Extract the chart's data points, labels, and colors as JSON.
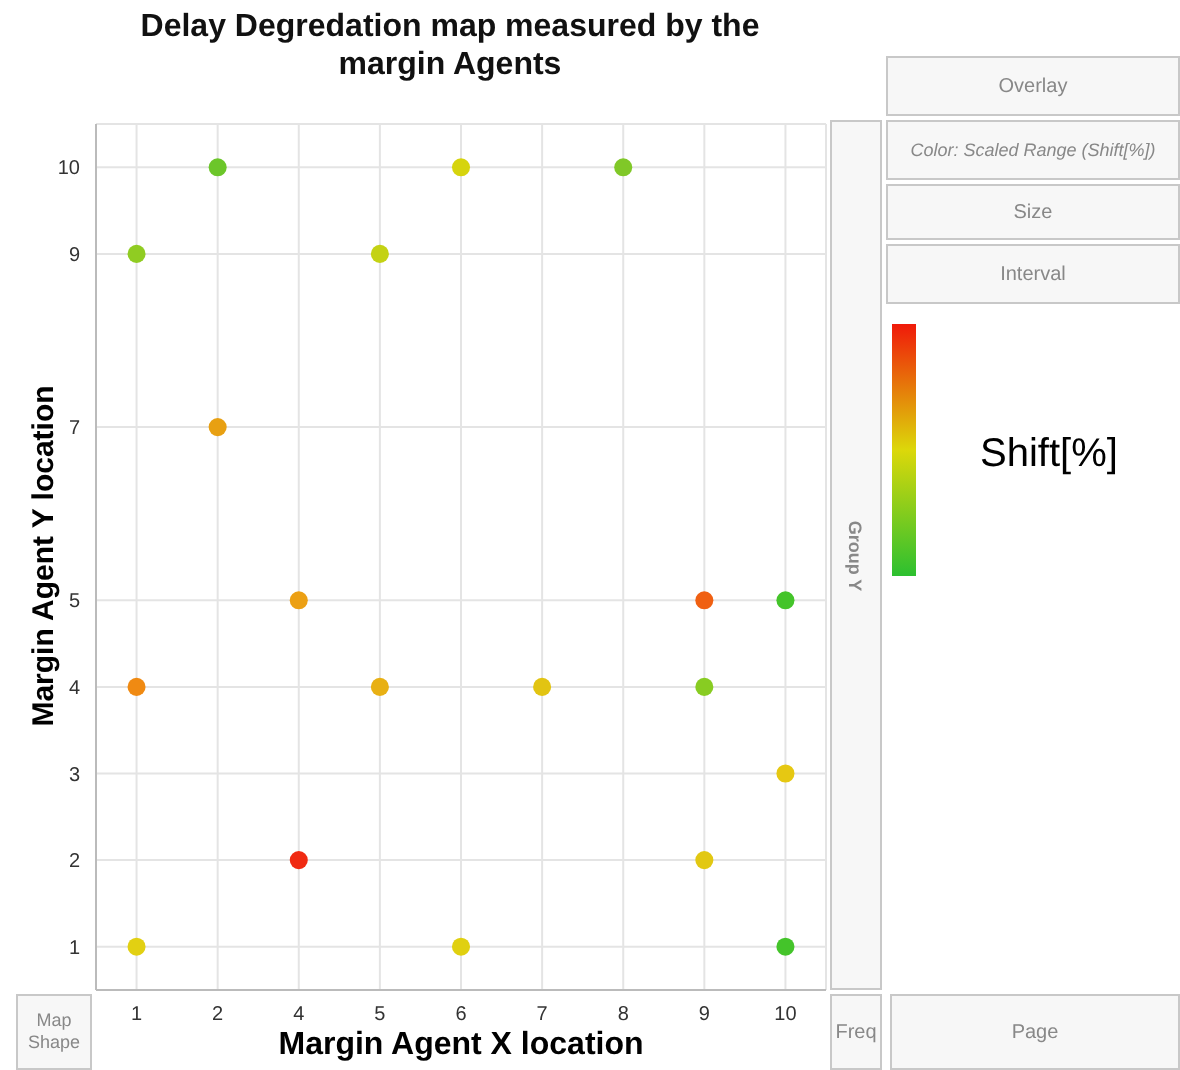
{
  "chart_data": {
    "type": "scatter",
    "title": "Delay Degredation map measured by the margin Agents",
    "xlabel": "Margin Agent X location",
    "ylabel": "Margin Agent Y location",
    "clabel": "Shift[%]",
    "categories": [
      "1",
      "2",
      "4",
      "5",
      "6",
      "7",
      "8",
      "9",
      "10"
    ],
    "ylim": [
      0.5,
      10.5
    ],
    "yticks": [
      1,
      2,
      3,
      4,
      5,
      7,
      9,
      10
    ],
    "series": [
      {
        "x": [
          "2",
          "6",
          "8",
          "1",
          "5",
          "2",
          "4",
          "9",
          "10",
          "1",
          "5",
          "7",
          "9",
          "10",
          "4",
          "9",
          "1",
          "6",
          "10"
        ],
        "values": [
          10,
          10,
          10,
          9,
          9,
          7,
          5,
          5,
          5,
          4,
          4,
          4,
          4,
          3,
          2,
          2,
          1,
          1,
          1
        ],
        "colors": [
          "#6cc62a",
          "#d6d40e",
          "#80c828",
          "#90cc22",
          "#c4d214",
          "#e8a012",
          "#eca014",
          "#f06012",
          "#44c42a",
          "#f08a12",
          "#e8b014",
          "#e2c412",
          "#88cc22",
          "#e6c812",
          "#f02a12",
          "#e2c812",
          "#e2d012",
          "#e0d010",
          "#44c42a"
        ]
      }
    ],
    "grid": true,
    "marker": "circle",
    "legend": false,
    "annotations": [
      "Overlay",
      "Color: Scaled Range (Shift[%])",
      "Size",
      "Interval",
      "Group Y",
      "Map Shape",
      "Freq",
      "Page"
    ]
  }
}
